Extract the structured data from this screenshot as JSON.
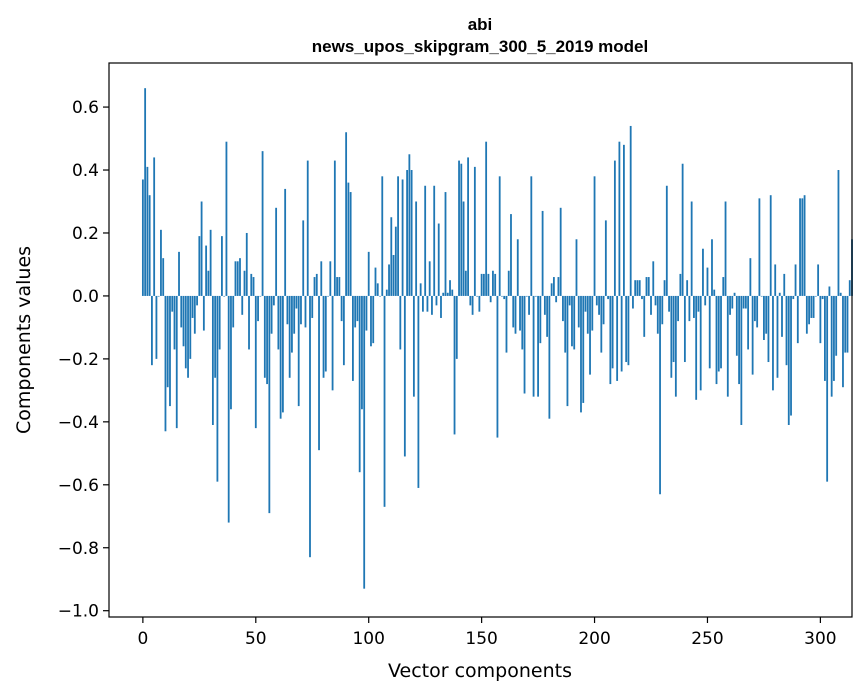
{
  "chart_data": {
    "type": "bar",
    "title": [
      "abi",
      "news_upos_skipgram_300_5_2019 model"
    ],
    "xlabel": "Vector components",
    "ylabel": "Components values",
    "xlim": [
      -15,
      314
    ],
    "ylim": [
      -1.02,
      0.74
    ],
    "xticks": [
      0,
      50,
      100,
      150,
      200,
      250,
      300
    ],
    "xtick_labels": [
      "0",
      "50",
      "100",
      "150",
      "200",
      "250",
      "300"
    ],
    "yticks": [
      0.6,
      0.4,
      0.2,
      0.0,
      -0.2,
      -0.4,
      -0.6,
      -0.8,
      -1.0
    ],
    "ytick_labels": [
      "0.6",
      "0.4",
      "0.2",
      "0.0",
      "−0.2",
      "−0.4",
      "−0.6",
      "−0.8",
      "−1.0"
    ],
    "color": "#1f77b4",
    "series": [
      {
        "name": "abi",
        "values": [
          0.37,
          0.66,
          0.41,
          0.32,
          -0.22,
          0.44,
          -0.2,
          0.0,
          0.21,
          0.12,
          -0.43,
          -0.29,
          -0.35,
          -0.05,
          -0.17,
          -0.42,
          0.14,
          -0.1,
          -0.16,
          -0.23,
          -0.26,
          -0.2,
          -0.07,
          -0.12,
          -0.03,
          0.19,
          0.3,
          -0.11,
          0.16,
          0.08,
          0.21,
          -0.41,
          -0.26,
          -0.59,
          -0.17,
          0.19,
          0.0,
          0.49,
          -0.72,
          -0.36,
          -0.1,
          0.11,
          0.11,
          0.12,
          -0.06,
          0.08,
          0.2,
          -0.17,
          0.07,
          0.06,
          -0.42,
          -0.08,
          0.0,
          0.46,
          -0.26,
          -0.28,
          -0.69,
          -0.12,
          -0.03,
          0.28,
          -0.17,
          -0.39,
          -0.37,
          0.34,
          -0.09,
          -0.26,
          -0.18,
          -0.12,
          -0.04,
          -0.35,
          -0.09,
          0.24,
          -0.1,
          0.43,
          -0.83,
          -0.07,
          0.06,
          0.07,
          -0.49,
          0.11,
          -0.26,
          -0.24,
          0.0,
          0.11,
          -0.3,
          0.43,
          0.06,
          0.06,
          -0.08,
          -0.22,
          0.52,
          0.36,
          0.33,
          -0.27,
          -0.1,
          -0.08,
          -0.56,
          -0.36,
          -0.93,
          -0.11,
          0.14,
          -0.16,
          -0.15,
          0.09,
          0.04,
          0.0,
          0.38,
          -0.67,
          0.02,
          0.1,
          0.25,
          0.13,
          0.22,
          0.38,
          -0.17,
          0.37,
          -0.51,
          0.4,
          0.45,
          0.4,
          -0.32,
          0.3,
          -0.61,
          0.04,
          -0.05,
          0.35,
          -0.05,
          0.11,
          -0.06,
          0.35,
          -0.03,
          0.23,
          -0.07,
          0.01,
          0.33,
          0.01,
          0.05,
          0.02,
          -0.44,
          -0.2,
          0.43,
          0.42,
          0.3,
          0.08,
          0.44,
          -0.03,
          -0.06,
          0.41,
          0.0,
          -0.05,
          0.07,
          0.07,
          0.49,
          0.07,
          -0.02,
          0.08,
          0.07,
          -0.45,
          0.38,
          0.0,
          -0.01,
          -0.18,
          0.08,
          0.26,
          -0.1,
          -0.12,
          0.18,
          -0.11,
          -0.17,
          -0.31,
          0.0,
          -0.06,
          0.38,
          -0.32,
          0.0,
          -0.32,
          -0.15,
          0.27,
          -0.06,
          -0.13,
          -0.39,
          0.04,
          0.06,
          -0.02,
          0.06,
          0.28,
          -0.08,
          -0.18,
          -0.35,
          -0.03,
          -0.16,
          -0.17,
          0.18,
          -0.1,
          -0.37,
          -0.34,
          -0.05,
          -0.12,
          -0.25,
          -0.11,
          0.38,
          -0.03,
          -0.06,
          -0.18,
          -0.09,
          0.24,
          -0.01,
          -0.28,
          -0.23,
          0.43,
          -0.27,
          0.49,
          -0.24,
          0.48,
          -0.21,
          -0.22,
          0.54,
          -0.04,
          0.05,
          0.05,
          0.05,
          -0.01,
          -0.13,
          0.06,
          0.06,
          -0.06,
          0.11,
          -0.03,
          -0.12,
          -0.63,
          -0.09,
          0.05,
          0.35,
          -0.05,
          -0.26,
          -0.21,
          -0.32,
          -0.08,
          0.07,
          0.42,
          -0.21,
          0.05,
          -0.08,
          0.3,
          -0.07,
          -0.33,
          -0.05,
          -0.3,
          0.15,
          -0.03,
          0.09,
          -0.23,
          0.18,
          0.02,
          -0.28,
          -0.24,
          -0.23,
          0.06,
          0.3,
          -0.32,
          -0.06,
          -0.04,
          0.01,
          -0.19,
          -0.28,
          -0.41,
          -0.04,
          -0.04,
          -0.17,
          0.12,
          -0.25,
          -0.08,
          -0.1,
          0.31,
          0.0,
          -0.14,
          -0.12,
          -0.21,
          0.32,
          -0.3,
          0.1,
          -0.26,
          0.01,
          -0.13,
          0.07,
          -0.22,
          -0.41,
          -0.38,
          -0.01,
          0.1,
          -0.15,
          0.31,
          0.31,
          0.32,
          -0.12,
          -0.09,
          -0.07,
          -0.07,
          0.0,
          0.1,
          -0.15,
          -0.01,
          -0.27,
          -0.59,
          0.03,
          -0.32,
          -0.27,
          -0.19,
          0.4,
          0.01,
          -0.29,
          -0.18,
          -0.18,
          0.05,
          0.18
        ]
      }
    ]
  }
}
